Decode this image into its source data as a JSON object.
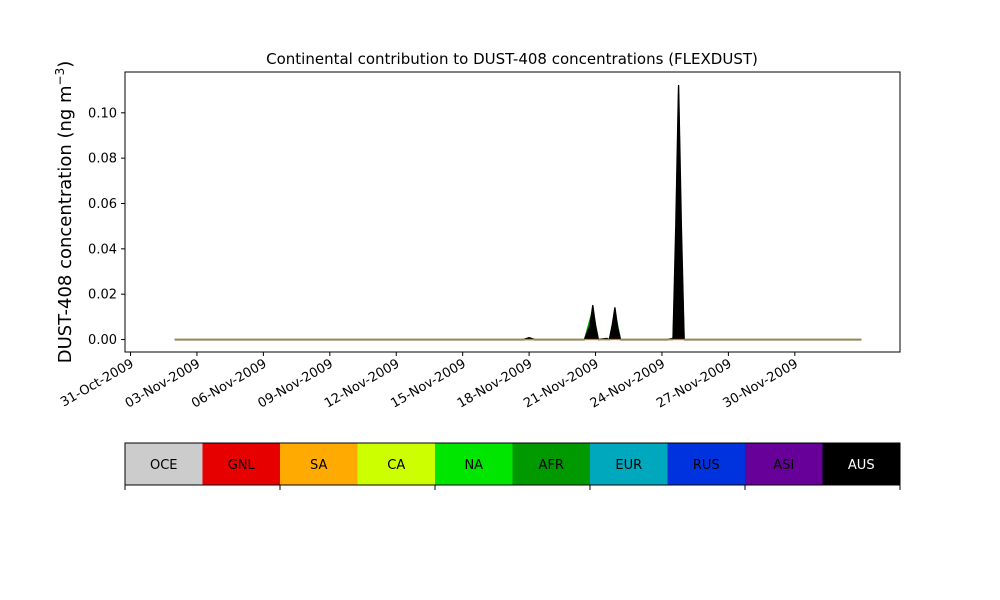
{
  "chart_data": {
    "type": "area",
    "title": "Continental contribution to DUST-408 concentrations (FLEXDUST)",
    "ylabel_main": "DUST-408 concentration (ng m",
    "ylabel_sup": "−3",
    "ylabel_close": ")",
    "xlabel": "",
    "x_axis_type": "date",
    "xlim": [
      "2009-10-30T18:00",
      "2009-12-04T18:00"
    ],
    "ylim": [
      -0.0055,
      0.118
    ],
    "yticks": [
      0.0,
      0.02,
      0.04,
      0.06,
      0.08,
      0.1
    ],
    "ytick_labels": [
      "0.00",
      "0.02",
      "0.04",
      "0.06",
      "0.08",
      "0.10"
    ],
    "xticks": [
      "2009-10-31",
      "2009-11-03",
      "2009-11-06",
      "2009-11-09",
      "2009-11-12",
      "2009-11-15",
      "2009-11-18",
      "2009-11-21",
      "2009-11-24",
      "2009-11-27",
      "2009-11-30"
    ],
    "xtick_labels": [
      "31-Oct-2009",
      "03-Nov-2009",
      "06-Nov-2009",
      "09-Nov-2009",
      "12-Nov-2009",
      "15-Nov-2009",
      "18-Nov-2009",
      "21-Nov-2009",
      "24-Nov-2009",
      "27-Nov-2009",
      "30-Nov-2009"
    ],
    "grid": false,
    "series": [
      {
        "color": "#009900",
        "x": [
          "2009-11-02T00:00",
          "2009-11-18T00:00",
          "2009-11-19T15:00",
          "2009-11-20T12:00",
          "2009-11-20T21:00",
          "2009-11-21T03:00",
          "2009-11-21T12:00",
          "2009-11-21T15:00",
          "2009-11-21T21:00",
          "2009-11-22T03:00",
          "2009-11-24T06:00",
          "2009-11-24T12:00",
          "2009-11-24T15:00",
          "2009-11-24T18:00",
          "2009-11-24T21:00",
          "2009-11-25T00:00",
          "2009-11-25T06:00",
          "2009-12-03T00:00"
        ],
        "values": [
          0,
          0,
          0,
          0,
          0.013,
          0,
          0,
          0,
          0.012,
          0,
          0,
          0,
          0.04,
          0.108,
          0.04,
          0,
          0,
          0
        ]
      },
      {
        "color": "#000000",
        "x": [
          "2009-11-02T00:00",
          "2009-11-17T18:00",
          "2009-11-18T00:00",
          "2009-11-18T06:00",
          "2009-11-19T15:00",
          "2009-11-20T12:00",
          "2009-11-20T18:00",
          "2009-11-20T21:00",
          "2009-11-21T00:00",
          "2009-11-21T03:00",
          "2009-11-21T12:00",
          "2009-11-21T15:00",
          "2009-11-21T18:00",
          "2009-11-21T21:00",
          "2009-11-22T00:00",
          "2009-11-22T03:00",
          "2009-11-24T06:00",
          "2009-11-24T12:00",
          "2009-11-24T15:00",
          "2009-11-24T18:00",
          "2009-11-24T21:00",
          "2009-11-25T00:00",
          "2009-11-25T06:00",
          "2009-12-03T00:00"
        ],
        "values": [
          0,
          0,
          0.0008,
          0,
          0,
          0,
          0.006,
          0.015,
          0.006,
          0,
          0.0005,
          0,
          0.006,
          0.014,
          0.005,
          0,
          0,
          0.0005,
          0.05,
          0.112,
          0.05,
          0,
          0,
          0
        ]
      },
      {
        "color": "#ff6600",
        "x": [
          "2009-11-02T00:00",
          "2009-12-03T00:00"
        ],
        "values": [
          0,
          0
        ]
      }
    ]
  },
  "legend": {
    "items": [
      {
        "label": "OCE",
        "color": "#cccccc",
        "text_color": "#000000"
      },
      {
        "label": "GNL",
        "color": "#e60000",
        "text_color": "#000000"
      },
      {
        "label": "SA",
        "color": "#ffaa00",
        "text_color": "#000000"
      },
      {
        "label": "CA",
        "color": "#ccff00",
        "text_color": "#000000"
      },
      {
        "label": "NA",
        "color": "#00e600",
        "text_color": "#000000"
      },
      {
        "label": "AFR",
        "color": "#009900",
        "text_color": "#000000"
      },
      {
        "label": "EUR",
        "color": "#00a8bd",
        "text_color": "#000000"
      },
      {
        "label": "RUS",
        "color": "#0033dd",
        "text_color": "#000000"
      },
      {
        "label": "ASI",
        "color": "#660099",
        "text_color": "#000000"
      },
      {
        "label": "AUS",
        "color": "#000000",
        "text_color": "#ffffff"
      }
    ]
  }
}
